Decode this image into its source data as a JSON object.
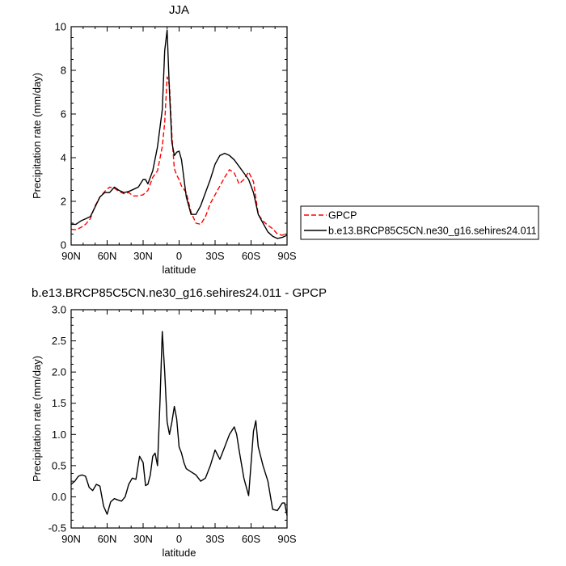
{
  "chart_data": [
    {
      "type": "line",
      "title": "JJA",
      "xlabel": "latitude",
      "ylabel": "Precipitation rate (mm/day)",
      "xlim": [
        90,
        -90
      ],
      "ylim": [
        0,
        10
      ],
      "xticks": [
        90,
        60,
        30,
        0,
        -30,
        -60,
        -90
      ],
      "xtick_labels": [
        "90N",
        "60N",
        "30N",
        "0",
        "30S",
        "60S",
        "90S"
      ],
      "yticks": [
        0,
        2,
        4,
        6,
        8,
        10
      ],
      "ytick_labels": [
        "0",
        "2",
        "4",
        "6",
        "8",
        "10"
      ],
      "legend_position": "right, outside plot",
      "series": [
        {
          "name": "GPCP",
          "color": "#ff0000",
          "dash": "dashed",
          "x": [
            90,
            86,
            82,
            78,
            74,
            70,
            66,
            62,
            58,
            54,
            50,
            46,
            42,
            38,
            34,
            30,
            26,
            22,
            18,
            14,
            12,
            10,
            8,
            6,
            4,
            2,
            0,
            -2,
            -6,
            -10,
            -14,
            -18,
            -22,
            -26,
            -30,
            -34,
            -38,
            -42,
            -46,
            -50,
            -54,
            -58,
            -62,
            -66,
            -70,
            -74,
            -78,
            -82,
            -86,
            -90
          ],
          "y": [
            0.72,
            0.7,
            0.8,
            0.95,
            1.2,
            1.8,
            2.2,
            2.45,
            2.65,
            2.6,
            2.45,
            2.35,
            2.4,
            2.25,
            2.25,
            2.3,
            2.5,
            3.1,
            3.4,
            4.5,
            5.6,
            7.7,
            7.3,
            5.0,
            3.5,
            3.2,
            3.0,
            2.7,
            2.4,
            1.5,
            1.0,
            0.95,
            1.3,
            1.9,
            2.3,
            2.7,
            3.1,
            3.45,
            3.3,
            2.8,
            3.0,
            3.35,
            2.9,
            1.4,
            1.1,
            0.9,
            0.75,
            0.5,
            0.45,
            0.52
          ]
        },
        {
          "name": "b.e13.BRCP85C5CN.ne30_g16.sehires24.011",
          "color": "#000000",
          "dash": "solid",
          "x": [
            90,
            86,
            82,
            78,
            74,
            70,
            66,
            62,
            58,
            54,
            50,
            46,
            42,
            38,
            34,
            30,
            28,
            26,
            22,
            18,
            14,
            12,
            10,
            8,
            6,
            4,
            2,
            0,
            -2,
            -6,
            -10,
            -14,
            -18,
            -22,
            -26,
            -30,
            -34,
            -38,
            -42,
            -46,
            -50,
            -54,
            -58,
            -62,
            -66,
            -70,
            -74,
            -78,
            -82,
            -86,
            -90
          ],
          "y": [
            0.95,
            0.95,
            1.1,
            1.2,
            1.3,
            1.75,
            2.2,
            2.4,
            2.4,
            2.65,
            2.5,
            2.4,
            2.45,
            2.55,
            2.65,
            3.0,
            3.0,
            2.8,
            3.4,
            4.5,
            6.2,
            8.9,
            9.85,
            7.0,
            4.7,
            4.1,
            4.25,
            4.3,
            3.9,
            2.2,
            1.4,
            1.4,
            1.8,
            2.4,
            3.0,
            3.7,
            4.1,
            4.2,
            4.1,
            3.9,
            3.6,
            3.3,
            3.0,
            2.4,
            1.4,
            1.0,
            0.6,
            0.4,
            0.3,
            0.35,
            0.45
          ]
        }
      ]
    },
    {
      "type": "line",
      "title": "b.e13.BRCP85C5CN.ne30_g16.sehires24.011 - GPCP",
      "xlabel": "latitude",
      "ylabel": "Precipitation rate (mm/day)",
      "xlim": [
        90,
        -90
      ],
      "ylim": [
        -0.5,
        3.0
      ],
      "xticks": [
        90,
        60,
        30,
        0,
        -30,
        -60,
        -90
      ],
      "xtick_labels": [
        "90N",
        "60N",
        "30N",
        "0",
        "30S",
        "60S",
        "90S"
      ],
      "yticks": [
        -0.5,
        0.0,
        0.5,
        1.0,
        1.5,
        2.0,
        2.5,
        3.0
      ],
      "ytick_labels": [
        "-0.5",
        "0.0",
        "0.5",
        "1.0",
        "1.5",
        "2.0",
        "2.5",
        "3.0"
      ],
      "series": [
        {
          "color": "#000000",
          "dash": "solid",
          "x": [
            90,
            87,
            84,
            81,
            78,
            75,
            72,
            69,
            66,
            63,
            60,
            57,
            54,
            51,
            48,
            45,
            42,
            39,
            36,
            33,
            30,
            28,
            26,
            24,
            22,
            20,
            18,
            16,
            14,
            12,
            10,
            8,
            6,
            4,
            2,
            0,
            -2,
            -4,
            -6,
            -10,
            -14,
            -18,
            -22,
            -26,
            -30,
            -34,
            -38,
            -42,
            -46,
            -48,
            -50,
            -54,
            -58,
            -62,
            -64,
            -66,
            -70,
            -74,
            -78,
            -82,
            -86,
            -88,
            -90
          ],
          "y": [
            0.2,
            0.25,
            0.33,
            0.35,
            0.33,
            0.15,
            0.1,
            0.2,
            0.17,
            -0.15,
            -0.28,
            -0.08,
            -0.03,
            -0.05,
            -0.07,
            0.0,
            0.2,
            0.3,
            0.28,
            0.65,
            0.55,
            0.18,
            0.2,
            0.35,
            0.65,
            0.7,
            0.5,
            1.5,
            2.65,
            2.0,
            1.2,
            1.0,
            1.2,
            1.45,
            1.25,
            0.8,
            0.7,
            0.55,
            0.45,
            0.4,
            0.35,
            0.25,
            0.3,
            0.5,
            0.75,
            0.6,
            0.8,
            1.0,
            1.12,
            1.0,
            0.75,
            0.3,
            0.02,
            1.05,
            1.22,
            0.8,
            0.5,
            0.25,
            -0.2,
            -0.22,
            -0.1,
            -0.1,
            -0.3
          ]
        }
      ]
    }
  ]
}
